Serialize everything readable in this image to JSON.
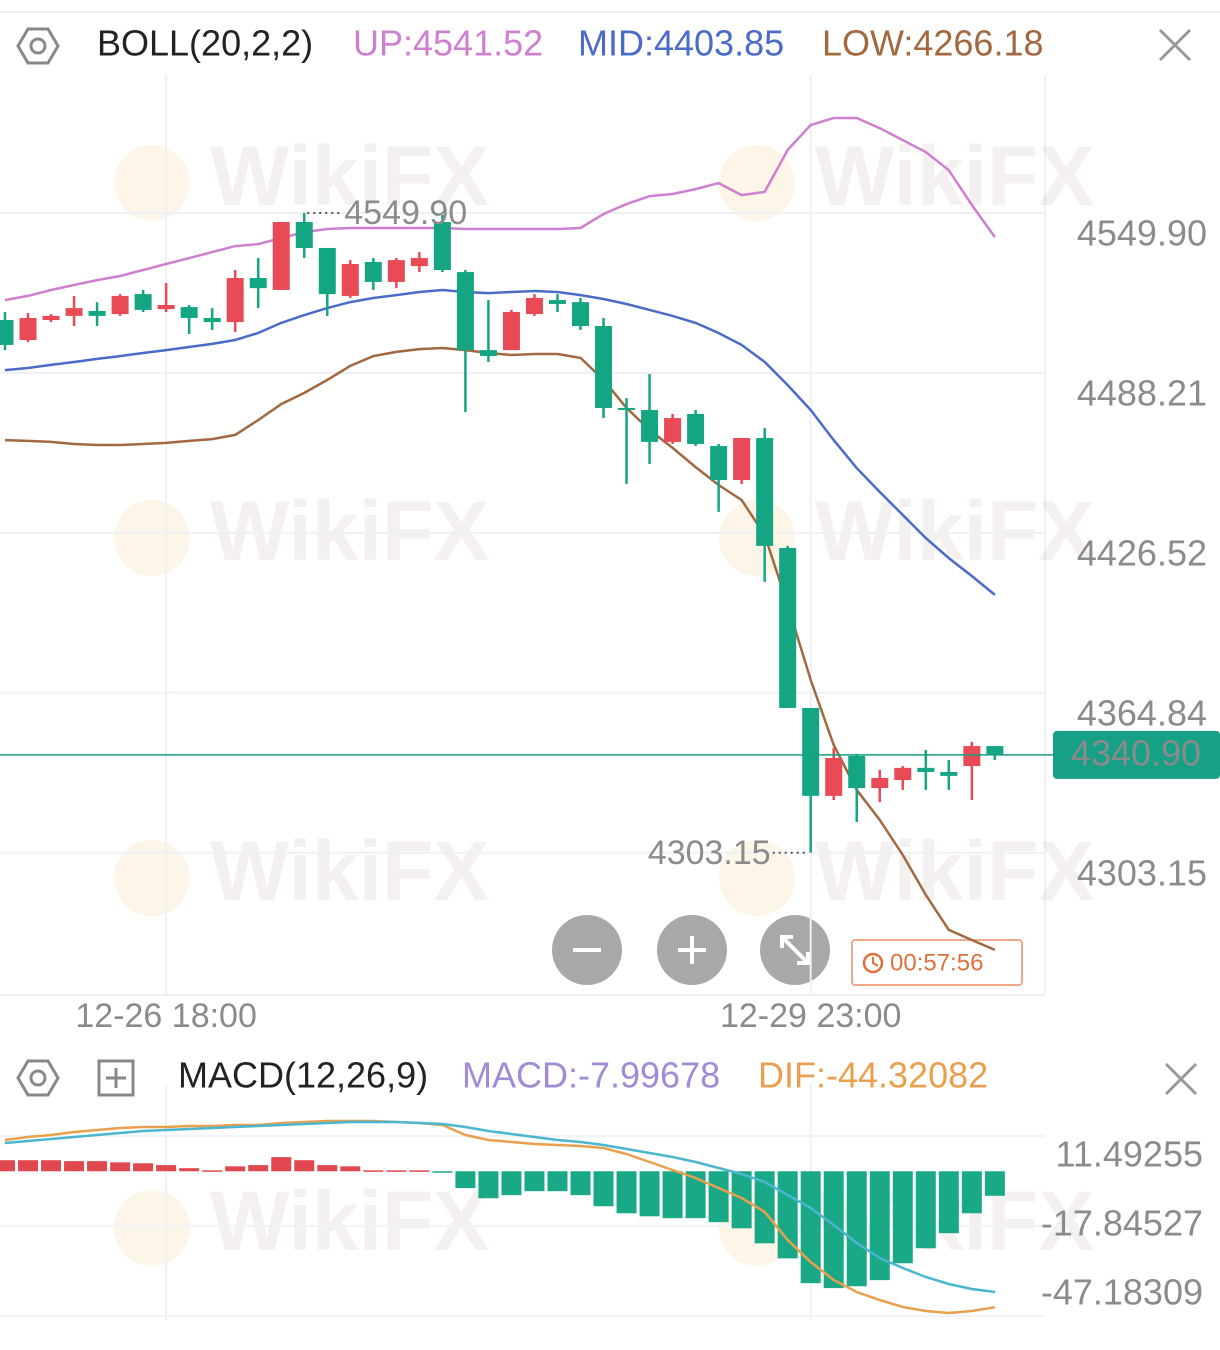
{
  "watermark": "WikiFX",
  "chart_data": [
    {
      "type": "candlestick",
      "title": "BOLL(20,2,2)",
      "categories": [
        null,
        null,
        null,
        null,
        null,
        null,
        null,
        "12-26 18:00",
        null,
        null,
        null,
        null,
        null,
        null,
        null,
        null,
        null,
        null,
        null,
        null,
        null,
        null,
        null,
        null,
        null,
        null,
        null,
        null,
        null,
        null,
        null,
        null,
        null,
        null,
        null,
        "12-29 23:00",
        null,
        null,
        null,
        null,
        null,
        null,
        null,
        null
      ],
      "ohlc": [
        [
          4508.6,
          4511.7,
          4497.0,
          4499.0
        ],
        [
          4500.9,
          4511.3,
          4500.1,
          4509.4
        ],
        [
          4508.6,
          4510.9,
          4507.8,
          4510.2
        ],
        [
          4510.2,
          4517.9,
          4506.3,
          4513.2
        ],
        [
          4512.1,
          4515.5,
          4506.3,
          4510.2
        ],
        [
          4510.9,
          4518.6,
          4510.2,
          4517.9
        ],
        [
          4518.6,
          4520.2,
          4511.7,
          4512.5
        ],
        [
          4512.8,
          4522.9,
          4511.7,
          4514.4
        ],
        [
          4513.6,
          4514.4,
          4503.2,
          4509.4
        ],
        [
          4509.4,
          4513.2,
          4504.8,
          4507.8
        ],
        [
          4507.8,
          4527.9,
          4504.0,
          4524.8
        ],
        [
          4524.8,
          4532.5,
          4513.2,
          4520.9
        ],
        [
          4520.2,
          4546.4,
          4520.2,
          4546.4
        ],
        [
          4546.4,
          4549.9,
          4532.5,
          4536.4
        ],
        [
          4536.4,
          4536.4,
          4510.2,
          4518.6
        ],
        [
          4517.9,
          4531.7,
          4517.1,
          4530.2
        ],
        [
          4531.0,
          4532.5,
          4520.2,
          4523.3
        ],
        [
          4523.3,
          4532.5,
          4520.9,
          4531.7
        ],
        [
          4529.4,
          4534.8,
          4527.1,
          4532.5
        ],
        [
          4546.4,
          4549.1,
          4527.1,
          4527.9
        ],
        [
          4527.1,
          4527.9,
          4473.1,
          4497.0
        ],
        [
          4497.0,
          4516.3,
          4492.4,
          4494.7
        ],
        [
          4497.0,
          4512.5,
          4497.0,
          4511.7
        ],
        [
          4510.9,
          4518.6,
          4510.2,
          4517.1
        ],
        [
          4516.3,
          4518.6,
          4511.7,
          4514.8
        ],
        [
          4515.5,
          4517.1,
          4504.8,
          4506.3
        ],
        [
          4506.3,
          4509.4,
          4470.8,
          4474.7
        ],
        [
          4474.7,
          4478.5,
          4445.4,
          4473.9
        ],
        [
          4473.9,
          4487.8,
          4453.1,
          4461.6
        ],
        [
          4461.6,
          4472.4,
          4460.8,
          4470.8
        ],
        [
          4472.4,
          4473.9,
          4460.0,
          4460.8
        ],
        [
          4460.0,
          4460.8,
          4434.6,
          4446.9
        ],
        [
          4446.9,
          4463.1,
          4445.4,
          4463.1
        ],
        [
          4463.1,
          4467.0,
          4407.6,
          4421.5
        ],
        [
          4420.7,
          4421.5,
          4359.0,
          4359.0
        ],
        [
          4359.0,
          4359.0,
          4303.15,
          4325.1
        ],
        [
          4325.1,
          4343.6,
          4323.5,
          4339.7
        ],
        [
          4340.5,
          4341.3,
          4315.0,
          4328.1
        ],
        [
          4328.1,
          4335.1,
          4322.7,
          4332.0
        ],
        [
          4331.2,
          4336.6,
          4327.4,
          4335.9
        ],
        [
          4335.9,
          4342.8,
          4327.4,
          4334.3
        ],
        [
          4334.3,
          4338.9,
          4327.4,
          4332.8
        ],
        [
          4336.6,
          4345.9,
          4323.5,
          4344.3
        ],
        [
          4344.3,
          4344.3,
          4338.9,
          4340.9
        ]
      ],
      "up_color": "#e84b55",
      "down_color": "#14a583",
      "series": [
        {
          "name": "UP:4541.52",
          "color": "#cf7fcf",
          "values": [
            4516.3,
            4517.9,
            4520.2,
            4522.1,
            4524.0,
            4525.6,
            4527.9,
            4530.2,
            4532.5,
            4534.8,
            4537.1,
            4537.9,
            4540.2,
            4542.5,
            4543.7,
            4544.1,
            4544.1,
            4544.1,
            4544.1,
            4544.1,
            4543.7,
            4543.7,
            4543.7,
            4543.7,
            4543.7,
            4544.1,
            4549.5,
            4553.3,
            4556.4,
            4557.2,
            4559.1,
            4561.4,
            4556.8,
            4558.0,
            4574.2,
            4583.8,
            4586.5,
            4586.5,
            4582.6,
            4578.0,
            4573.4,
            4566.4,
            4553.0,
            4540.6
          ]
        },
        {
          "name": "MID:4403.85",
          "color": "#4a6cc8",
          "values": [
            4489.3,
            4490.1,
            4491.3,
            4492.4,
            4493.6,
            4494.7,
            4495.9,
            4497.0,
            4498.2,
            4499.4,
            4500.9,
            4503.6,
            4507.5,
            4510.5,
            4513.2,
            4515.5,
            4517.1,
            4518.2,
            4519.4,
            4520.2,
            4519.4,
            4519.0,
            4519.4,
            4519.8,
            4519.4,
            4518.2,
            4516.7,
            4514.8,
            4512.5,
            4510.2,
            4507.5,
            4503.6,
            4499.0,
            4492.4,
            4483.5,
            4473.9,
            4462.3,
            4451.5,
            4442.3,
            4433.4,
            4424.5,
            4416.8,
            4409.9,
            4402.6
          ]
        },
        {
          "name": "LOW:4266.18",
          "color": "#a2683f",
          "values": [
            4462.3,
            4462.0,
            4461.6,
            4460.8,
            4460.4,
            4460.4,
            4460.8,
            4461.2,
            4462.0,
            4462.7,
            4464.3,
            4470.0,
            4476.2,
            4480.5,
            4485.5,
            4490.9,
            4494.7,
            4496.3,
            4497.4,
            4497.8,
            4497.0,
            4495.9,
            4495.1,
            4495.5,
            4495.5,
            4494.0,
            4485.5,
            4474.7,
            4466.2,
            4459.3,
            4451.9,
            4445.0,
            4439.2,
            4425.7,
            4398.7,
            4369.8,
            4344.7,
            4327.4,
            4315.8,
            4302.3,
            4286.9,
            4273.4,
            4269.5,
            4265.7
          ]
        }
      ],
      "ylim": [
        4248.3,
        4603.1
      ],
      "yticks": [
        {
          "value": 4549.9,
          "label": "4549.90"
        },
        4488.21,
        4426.52,
        4364.84,
        4303.15
      ],
      "last_price": {
        "value": 4340.9,
        "label": "4340.90"
      },
      "max_label": "4549.90",
      "min_label": "4303.15",
      "timer": "00:57:56",
      "grid": true
    },
    {
      "type": "macd",
      "title": "MACD(12,26,9)",
      "up_color": "#e0474f",
      "down_color": "#19a987",
      "series": [
        {
          "name": "MACD:-7.99678",
          "color": "#a38ad6",
          "kind": "bar",
          "values": [
            3.6,
            3.6,
            3.6,
            3.3,
            3.3,
            2.9,
            2.6,
            2.0,
            1.0,
            0.3,
            1.6,
            2.0,
            4.6,
            3.6,
            2.0,
            1.6,
            0.3,
            0.3,
            0.3,
            -0.3,
            -5.5,
            -8.8,
            -7.8,
            -6.5,
            -6.5,
            -7.8,
            -11.4,
            -13.7,
            -14.7,
            -15.3,
            -15.3,
            -16.6,
            -18.6,
            -23.5,
            -28.4,
            -36.5,
            -38.1,
            -37.5,
            -35.5,
            -30.0,
            -25.1,
            -20.2,
            -13.7,
            -7.99678
          ]
        },
        {
          "name": "DIF:-44.32082",
          "color": "#e9a04e",
          "values": [
            10.18,
            11.16,
            11.81,
            12.79,
            13.44,
            14.09,
            14.42,
            14.42,
            14.75,
            14.75,
            15.07,
            15.07,
            15.72,
            16.05,
            16.38,
            16.38,
            16.38,
            16.05,
            15.72,
            15.07,
            11.81,
            10.18,
            9.53,
            8.88,
            8.55,
            8.23,
            7.58,
            5.62,
            3.01,
            0.4,
            -2.2,
            -5.46,
            -8.72,
            -13.28,
            -22.41,
            -29.58,
            -35.45,
            -39.36,
            -41.97,
            -44.25,
            -45.55,
            -46.21,
            -45.55,
            -44.32082
          ]
        },
        {
          "color": "#4ab6cf",
          "values": [
            9.2,
            9.86,
            10.51,
            11.16,
            11.81,
            12.46,
            13.12,
            13.44,
            13.77,
            14.09,
            14.42,
            14.75,
            15.07,
            15.4,
            15.72,
            16.05,
            16.05,
            16.05,
            15.72,
            15.4,
            14.42,
            13.12,
            12.14,
            11.16,
            10.18,
            9.53,
            8.55,
            7.25,
            5.94,
            4.64,
            3.01,
            1.06,
            -0.9,
            -3.51,
            -7.75,
            -11.98,
            -17.53,
            -23.39,
            -28.28,
            -31.54,
            -34.48,
            -36.76,
            -38.39,
            -39.37
          ]
        }
      ],
      "ylim": [
        -48.5,
        21.6
      ],
      "yticks": [
        11.49255,
        -17.84527,
        -47.18309
      ],
      "grid": true
    }
  ]
}
